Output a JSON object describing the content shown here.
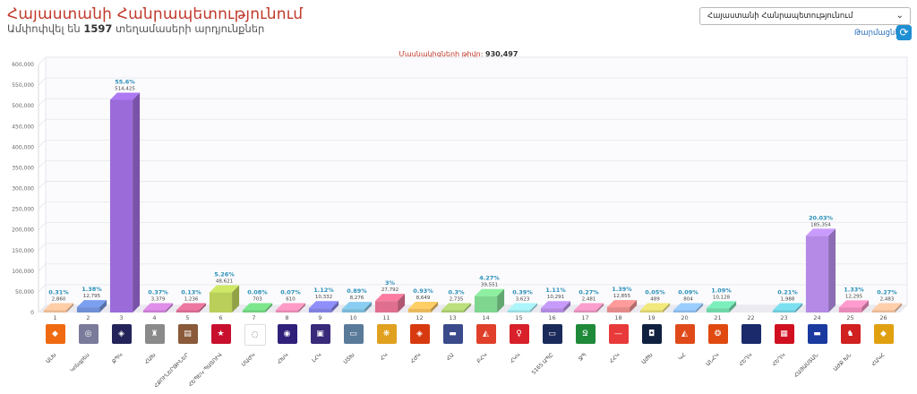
{
  "header": {
    "title": "Հայաստանի Հանրապետությունում",
    "subtitle_prefix": "Ամփոփվել են",
    "stations_count": "1597",
    "subtitle_suffix": "տեղամասերի արդյունքներ"
  },
  "region_select": {
    "value": "Հայաստանի Հանրապետությունում"
  },
  "refresh": {
    "label": "Թարմացնել"
  },
  "participants": {
    "label": "Մասնակիցների թիվը:",
    "value": "930,497"
  },
  "chart_data": {
    "type": "bar",
    "ylim": [
      0,
      600000
    ],
    "yticks": [
      "0",
      "50,000",
      "100,000",
      "150,000",
      "200,000",
      "250,000",
      "300,000",
      "350,000",
      "400,000",
      "450,000",
      "500,000",
      "550,000",
      "600,000"
    ],
    "categories": [
      "1",
      "2",
      "3",
      "4",
      "5",
      "6",
      "7",
      "8",
      "9",
      "10",
      "11",
      "12",
      "13",
      "14",
      "15",
      "16",
      "17",
      "18",
      "19",
      "20",
      "21",
      "22",
      "23",
      "24",
      "25",
      "26"
    ],
    "values": [
      2860,
      12795,
      514425,
      3379,
      1236,
      48621,
      703,
      610,
      10332,
      8276,
      27792,
      8649,
      2735,
      39551,
      3623,
      10291,
      2481,
      12855,
      489,
      804,
      10128,
      0,
      1988,
      185354,
      12295,
      2483
    ],
    "value_labels": [
      "2,860",
      "12,795",
      "514,425",
      "3,379",
      "1,236",
      "48,621",
      "703",
      "610",
      "10,332",
      "8,276",
      "27,792",
      "8,649",
      "2,735",
      "39,551",
      "3,623",
      "10,291",
      "2,481",
      "12,855",
      "489",
      "804",
      "10,128",
      "",
      "1,988",
      "185,354",
      "12,295",
      "2,483"
    ],
    "percents": [
      "0.31%",
      "1.38%",
      "55.6%",
      "0.37%",
      "0.13%",
      "5.26%",
      "0.08%",
      "0.07%",
      "1.12%",
      "0.89%",
      "3%",
      "0.93%",
      "0.3%",
      "4.27%",
      "0.39%",
      "1.11%",
      "0.27%",
      "1.39%",
      "0.05%",
      "0.09%",
      "1.09%",
      "",
      "0.21%",
      "20.03%",
      "1.33%",
      "0.27%"
    ],
    "parties": [
      "ԱԼԽ",
      "Կոնգրես",
      "ՔՊԿ",
      "ՀԱԽ",
      "ՀՔՈՒՆԵՐԹԻՆԵՐ",
      "ՀԵՊԵԿ ՊԱՏՈՒՎ",
      "ՄԱԺԿ",
      "ՀԽԿ",
      "ԼՀԿ",
      "ՍՏԽ",
      "ՀԿ",
      "ՀԺԿ",
      "ՀԱ",
      "ԲՀԿ",
      "ՀԿԿ",
      "5165 ԱՊԸ",
      "ՋՊ",
      "ՀՀԿ",
      "ԱԺԽ",
      "ԿՀ",
      "ԱՆՀԿ",
      "ՀԵՂԿ",
      "ՀԵՂԿ",
      "ՀԱՅԱՍՏԱՆ",
      "ԱԺՔ ԽՆ",
      "ՀԱԿՀ"
    ],
    "colors": [
      "#e8b894",
      "#6f8fd6",
      "#9b6bd9",
      "#c77fd0",
      "#d46a8f",
      "#b9cf5a",
      "#6fce7e",
      "#e58ab2",
      "#8080e0",
      "#7ab8d8",
      "#e06f8f",
      "#e8b85a",
      "#a7c86f",
      "#7ed68f",
      "#9adbe0",
      "#b28ae0",
      "#e08fb8",
      "#e58a8a",
      "#d8d06f",
      "#8ab8e6",
      "#6fd6a8",
      "#c8a8e8",
      "#6fc8d6",
      "#b48ae6",
      "#e88ab8",
      "#e8b898"
    ],
    "logo_colors": [
      "#ef6a10",
      "#7a7a9a",
      "#24245a",
      "#8a8a8a",
      "#8a5a3a",
      "#c8102e",
      "#ffffff",
      "#30207a",
      "#3a2a7a",
      "#5a7a9a",
      "#e0a020",
      "#d83a10",
      "#3a4a8a",
      "#e0402a",
      "#d8202a",
      "#1a2a5a",
      "#1f8a3a",
      "#e83a3a",
      "#102040",
      "#e04a1a",
      "#e04a10",
      "#1a2a6a",
      "#d01020",
      "#1a3aa0",
      "#d02020",
      "#e0a010"
    ],
    "logo_glyphs": [
      "◆",
      "◎",
      "◈",
      "♜",
      "▤",
      "★",
      "◌",
      "◉",
      "▣",
      "▭",
      "❋",
      "◈",
      "▬",
      "◭",
      "♀",
      "▭",
      "Ջ",
      "—",
      "◘",
      "◭",
      "❂",
      "",
      "▦",
      "▬",
      "♞",
      "◆"
    ],
    "highlight_labels": [
      false,
      false,
      true,
      false,
      false,
      false,
      false,
      false,
      false,
      false,
      false,
      false,
      false,
      false,
      false,
      false,
      false,
      false,
      false,
      false,
      false,
      false,
      false,
      true,
      false,
      false
    ]
  }
}
